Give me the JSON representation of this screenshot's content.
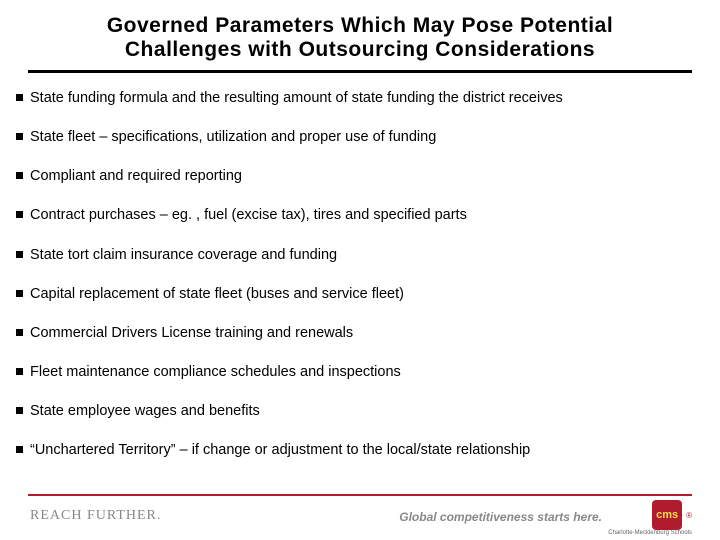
{
  "title_line1": "Governed Parameters Which May Pose Potential",
  "title_line2": "Challenges with Outsourcing Considerations",
  "bullets": [
    "State funding formula and the resulting amount of state funding the district receives",
    "State fleet – specifications, utilization and proper use of funding",
    "Compliant and required reporting",
    "Contract purchases – eg. , fuel (excise tax), tires and specified parts",
    "State tort claim insurance coverage and funding",
    "Capital replacement of state fleet (buses and service fleet)",
    "Commercial Drivers License training and renewals",
    "Fleet maintenance compliance schedules and inspections",
    "State employee wages and benefits",
    "“Unchartered Territory” – if change or adjustment to the local/state relationship"
  ],
  "footer": {
    "reach_further": "REACH FURTHER.",
    "tagline": "Global competitiveness starts here.",
    "logo_text": "cms",
    "logo_sub": "Charlotte-Mecklenburg Schools"
  },
  "colors": {
    "accent": "#b01c2e",
    "text": "#000000",
    "muted": "#888888",
    "logo_fg": "#f5e04a"
  }
}
